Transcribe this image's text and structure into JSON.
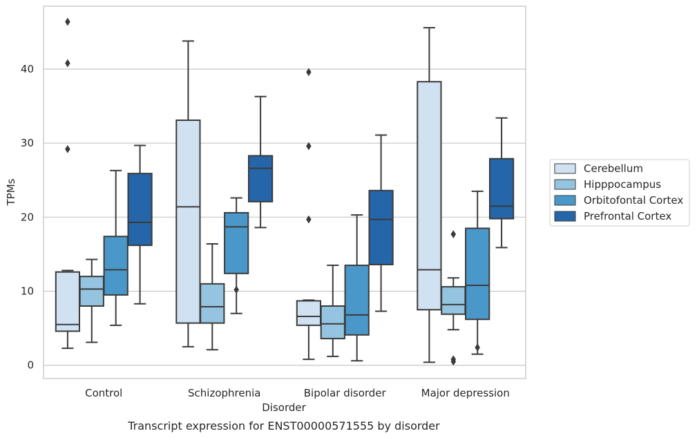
{
  "caption": "Transcript expression for ENST00000571555 by disorder",
  "chart_data": {
    "type": "box",
    "xlabel": "Disorder",
    "ylabel": "TPMs",
    "ylim": [
      -1.8,
      48.5
    ],
    "yticks": [
      0,
      10,
      20,
      30,
      40
    ],
    "grid": "horizontal",
    "legend_position": "right",
    "categories": [
      "Control",
      "Schizophrenia",
      "Bipolar disorder",
      "Major depression"
    ],
    "series": [
      {
        "name": "Cerebellum",
        "color": "#d0e1f2",
        "boxes": [
          {
            "whislo": 2.3,
            "q1": 4.6,
            "med": 5.5,
            "q3": 12.6,
            "whishi": 12.8,
            "fliers": [
              29.2,
              40.8,
              46.4
            ]
          },
          {
            "whislo": 2.5,
            "q1": 5.7,
            "med": 21.4,
            "q3": 33.1,
            "whishi": 43.8,
            "fliers": []
          },
          {
            "whislo": 0.8,
            "q1": 5.4,
            "med": 6.6,
            "q3": 8.7,
            "whishi": 8.8,
            "fliers": [
              19.7,
              29.6,
              39.6
            ]
          },
          {
            "whislo": 0.4,
            "q1": 7.5,
            "med": 12.9,
            "q3": 38.3,
            "whishi": 45.6,
            "fliers": []
          }
        ]
      },
      {
        "name": "Hipppocampus",
        "color": "#94c4df",
        "boxes": [
          {
            "whislo": 3.1,
            "q1": 8.0,
            "med": 10.3,
            "q3": 12.0,
            "whishi": 14.3,
            "fliers": []
          },
          {
            "whislo": 2.1,
            "q1": 5.7,
            "med": 7.9,
            "q3": 11.0,
            "whishi": 16.4,
            "fliers": []
          },
          {
            "whislo": 1.2,
            "q1": 3.6,
            "med": 5.6,
            "q3": 8.0,
            "whishi": 13.5,
            "fliers": []
          },
          {
            "whislo": 4.8,
            "q1": 6.9,
            "med": 8.2,
            "q3": 10.6,
            "whishi": 11.8,
            "fliers": [
              0.5,
              0.8,
              17.7
            ]
          }
        ]
      },
      {
        "name": "Orbitofontal Cortex",
        "color": "#4a98c9",
        "boxes": [
          {
            "whislo": 5.4,
            "q1": 9.5,
            "med": 12.9,
            "q3": 17.4,
            "whishi": 26.3,
            "fliers": []
          },
          {
            "whislo": 7.0,
            "q1": 12.4,
            "med": 18.7,
            "q3": 20.6,
            "whishi": 22.6,
            "fliers": [
              10.2
            ]
          },
          {
            "whislo": 0.6,
            "q1": 4.1,
            "med": 6.8,
            "q3": 13.5,
            "whishi": 20.3,
            "fliers": []
          },
          {
            "whislo": 1.5,
            "q1": 6.2,
            "med": 10.8,
            "q3": 18.5,
            "whishi": 23.5,
            "fliers": [
              2.4
            ]
          }
        ]
      },
      {
        "name": "Prefrontal Cortex",
        "color": "#2466a9",
        "boxes": [
          {
            "whislo": 8.3,
            "q1": 16.2,
            "med": 19.3,
            "q3": 25.9,
            "whishi": 29.7,
            "fliers": []
          },
          {
            "whislo": 18.6,
            "q1": 22.1,
            "med": 26.6,
            "q3": 28.3,
            "whishi": 36.3,
            "fliers": []
          },
          {
            "whislo": 7.3,
            "q1": 13.6,
            "med": 19.7,
            "q3": 23.6,
            "whishi": 31.1,
            "fliers": []
          },
          {
            "whislo": 15.9,
            "q1": 19.8,
            "med": 21.5,
            "q3": 27.9,
            "whishi": 33.4,
            "fliers": []
          }
        ]
      }
    ]
  }
}
